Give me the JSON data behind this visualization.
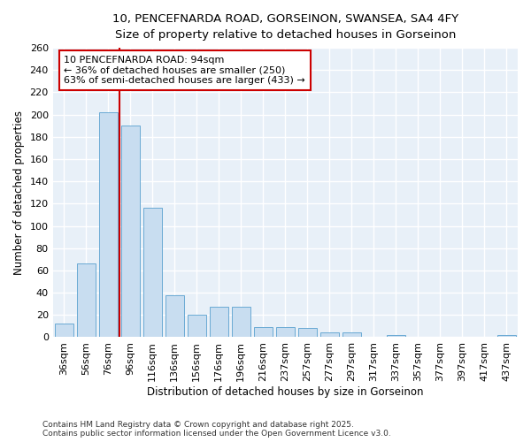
{
  "title_line1": "10, PENCEFNARDA ROAD, GORSEINON, SWANSEA, SA4 4FY",
  "title_line2": "Size of property relative to detached houses in Gorseinon",
  "xlabel": "Distribution of detached houses by size in Gorseinon",
  "ylabel": "Number of detached properties",
  "bar_color": "#c8ddf0",
  "bar_edge_color": "#6aaad4",
  "background_color": "#ffffff",
  "plot_bg_color": "#e8f0f8",
  "grid_color": "#ffffff",
  "categories": [
    "36sqm",
    "56sqm",
    "76sqm",
    "96sqm",
    "116sqm",
    "136sqm",
    "156sqm",
    "176sqm",
    "196sqm",
    "216sqm",
    "237sqm",
    "257sqm",
    "277sqm",
    "297sqm",
    "317sqm",
    "337sqm",
    "357sqm",
    "377sqm",
    "397sqm",
    "417sqm",
    "437sqm"
  ],
  "values": [
    12,
    66,
    202,
    190,
    116,
    38,
    20,
    27,
    27,
    9,
    9,
    8,
    4,
    4,
    0,
    2,
    0,
    0,
    0,
    0,
    2
  ],
  "ylim": [
    0,
    260
  ],
  "yticks": [
    0,
    20,
    40,
    60,
    80,
    100,
    120,
    140,
    160,
    180,
    200,
    220,
    240,
    260
  ],
  "property_size": 94,
  "property_label": "10 PENCEFNARDA ROAD: 94sqm",
  "smaller_pct": "36%",
  "smaller_count": 250,
  "larger_semi_pct": "63%",
  "larger_semi_count": 433,
  "vline_x": 2.5,
  "annotation_box_color": "white",
  "annotation_box_edge": "#cc0000",
  "vline_color": "#cc0000",
  "footer_line1": "Contains HM Land Registry data © Crown copyright and database right 2025.",
  "footer_line2": "Contains public sector information licensed under the Open Government Licence v3.0."
}
